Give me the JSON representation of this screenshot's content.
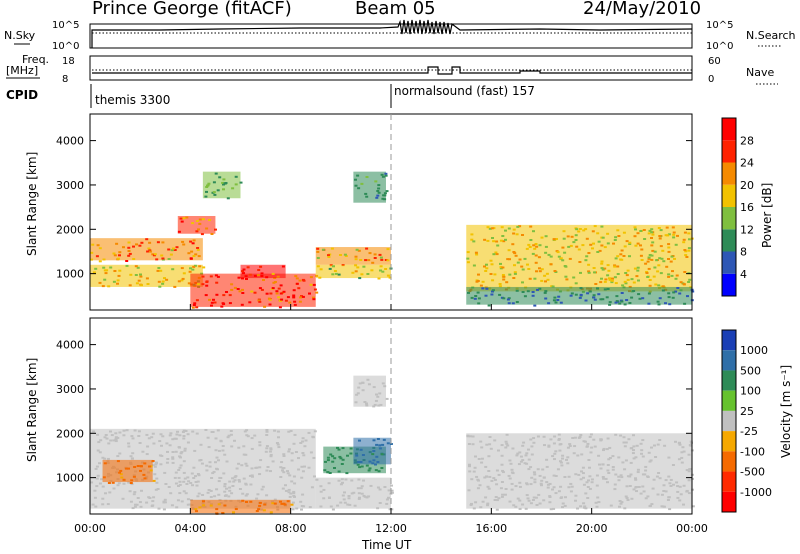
{
  "header": {
    "station": "Prince George (fitACF)",
    "beam": "Beam 05",
    "date": "24/May/2010"
  },
  "top_panels": {
    "nsky_label": "N.Sky",
    "nsearch_label": "N.Search",
    "nsky_ticks": [
      "10^5",
      "10^0"
    ],
    "nsearch_ticks": [
      "10^5",
      "10^0"
    ],
    "freq_label_1": "Freq.",
    "freq_label_2": "[MHz]",
    "freq_ticks": [
      "18",
      "8"
    ],
    "nave_label": "Nave",
    "nave_ticks": [
      "60",
      "0"
    ],
    "cpid_label": "CPID",
    "cpid_segments": [
      {
        "name": "themis 3300",
        "start_hour": 0
      },
      {
        "name": "normalsound (fast) 157",
        "start_hour": 12
      }
    ]
  },
  "chart_data": [
    {
      "type": "heatmap",
      "title": "",
      "xlabel": "Time UT",
      "ylabel": "Slant Range [km]",
      "xlim": [
        0,
        24
      ],
      "ylim": [
        180,
        4600
      ],
      "x_ticks": [
        "00:00",
        "04:00",
        "08:00",
        "12:00",
        "16:00",
        "20:00",
        "00:00"
      ],
      "y_ticks": [
        1000,
        2000,
        3000,
        4000
      ],
      "colorbar": {
        "label": "Power [dB]",
        "ticks": [
          4,
          8,
          12,
          16,
          20,
          24,
          28
        ],
        "colors": [
          "#0000ff",
          "#2e57b5",
          "#2e8b57",
          "#7fbf3f",
          "#f2c200",
          "#f58a00",
          "#ff2200",
          "#ff0000"
        ]
      },
      "regions": [
        {
          "t0": 0.0,
          "t1": 4.5,
          "r0": 1300,
          "r1": 1800,
          "value": 22
        },
        {
          "t0": 0.0,
          "t1": 4.5,
          "r0": 700,
          "r1": 1200,
          "value": 18
        },
        {
          "t0": 3.5,
          "t1": 5.0,
          "r0": 1900,
          "r1": 2300,
          "value": 24
        },
        {
          "t0": 4.0,
          "t1": 9.0,
          "r0": 250,
          "r1": 1000,
          "value": 27
        },
        {
          "t0": 6.0,
          "t1": 7.8,
          "r0": 900,
          "r1": 1200,
          "value": 28
        },
        {
          "t0": 9.0,
          "t1": 12.0,
          "r0": 1200,
          "r1": 1600,
          "value": 22
        },
        {
          "t0": 9.0,
          "t1": 12.0,
          "r0": 900,
          "r1": 1200,
          "value": 16
        },
        {
          "t0": 10.5,
          "t1": 11.8,
          "r0": 2600,
          "r1": 3300,
          "value": 10
        },
        {
          "t0": 15.0,
          "t1": 24.0,
          "r0": 600,
          "r1": 2100,
          "value": 18
        },
        {
          "t0": 15.0,
          "t1": 24.0,
          "r0": 300,
          "r1": 700,
          "value": 8
        },
        {
          "t0": 4.5,
          "t1": 6.0,
          "r0": 2700,
          "r1": 3300,
          "value": 12
        }
      ]
    },
    {
      "type": "heatmap",
      "title": "",
      "xlabel": "Time UT",
      "ylabel": "Slant Range [km]",
      "xlim": [
        0,
        24
      ],
      "ylim": [
        180,
        4600
      ],
      "x_ticks": [
        "00:00",
        "04:00",
        "08:00",
        "12:00",
        "16:00",
        "20:00",
        "00:00"
      ],
      "y_ticks": [
        1000,
        2000,
        3000,
        4000
      ],
      "colorbar": {
        "label": "Velocity [m s⁻¹]",
        "ticks": [
          "1000",
          "500",
          "100",
          "25",
          "-25",
          "-100",
          "-500",
          "-1000"
        ],
        "colors": [
          "#1a3fb5",
          "#2f6fa8",
          "#2e8b57",
          "#66c22e",
          "#c0c0c0",
          "#f5a800",
          "#f56a00",
          "#ff2a00",
          "#ff0000"
        ]
      },
      "regions": [
        {
          "t0": 0.0,
          "t1": 9.0,
          "r0": 300,
          "r1": 2100,
          "value": 0
        },
        {
          "t0": 0.5,
          "t1": 2.5,
          "r0": 900,
          "r1": 1400,
          "value": -110
        },
        {
          "t0": 4.0,
          "t1": 8.0,
          "r0": 200,
          "r1": 500,
          "value": -110
        },
        {
          "t0": 9.3,
          "t1": 11.8,
          "r0": 1100,
          "r1": 1700,
          "value": 200
        },
        {
          "t0": 10.5,
          "t1": 12.0,
          "r0": 1300,
          "r1": 1900,
          "value": 600
        },
        {
          "t0": 9.0,
          "t1": 12.0,
          "r0": 300,
          "r1": 1000,
          "value": 0
        },
        {
          "t0": 15.0,
          "t1": 24.0,
          "r0": 300,
          "r1": 2000,
          "value": 0
        },
        {
          "t0": 10.5,
          "t1": 11.8,
          "r0": 2600,
          "r1": 3300,
          "value": 0
        }
      ]
    }
  ]
}
